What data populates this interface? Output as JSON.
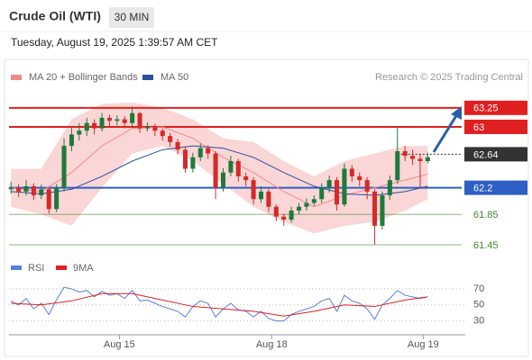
{
  "header": {
    "title": "Crude Oil (WTI)",
    "interval": "30 MIN",
    "timestamp": "Tuesday, August 19, 2025 1:39:57 AM CET"
  },
  "source": "Research © 2025 Trading Central",
  "chart_data": [
    {
      "type": "candlestick",
      "open": [
        62.18,
        62.2,
        62.15,
        62.22,
        62.1,
        62.18,
        61.92,
        62.2,
        62.75,
        62.9,
        62.95,
        63.05,
        62.98,
        63.12,
        63.08,
        63.1,
        63.05,
        63.18,
        62.98,
        63.0,
        62.95,
        62.88,
        62.8,
        62.7,
        62.45,
        62.6,
        62.72,
        62.65,
        62.2,
        62.4,
        62.55,
        62.35,
        62.3,
        62.05,
        62.15,
        61.95,
        61.82,
        61.78,
        61.9,
        61.95,
        62.0,
        62.05,
        62.2,
        62.3,
        61.98,
        62.45,
        62.35,
        62.3,
        62.15,
        61.7,
        62.1,
        62.3,
        62.68,
        62.62,
        62.58,
        62.55
      ],
      "high": [
        62.28,
        62.25,
        62.3,
        62.26,
        62.24,
        62.2,
        62.25,
        62.85,
        63.0,
        63.05,
        63.12,
        63.1,
        63.18,
        63.16,
        63.15,
        63.14,
        63.27,
        63.2,
        63.06,
        63.04,
        62.98,
        62.92,
        62.84,
        62.74,
        62.66,
        62.78,
        62.76,
        62.68,
        62.46,
        62.62,
        62.58,
        62.4,
        62.34,
        62.22,
        62.18,
        61.98,
        61.86,
        61.95,
        62.0,
        62.06,
        62.1,
        62.26,
        62.36,
        62.34,
        62.52,
        62.5,
        62.4,
        62.34,
        62.18,
        62.15,
        62.36,
        63.0,
        62.75,
        62.7,
        62.65,
        62.66
      ],
      "low": [
        62.12,
        62.08,
        62.1,
        62.04,
        62.05,
        61.86,
        61.88,
        62.15,
        62.68,
        62.82,
        62.88,
        62.9,
        62.94,
        63.0,
        63.02,
        62.98,
        63.0,
        62.92,
        62.94,
        62.88,
        62.82,
        62.74,
        62.64,
        62.4,
        62.4,
        62.55,
        62.58,
        62.05,
        62.15,
        62.35,
        62.28,
        62.22,
        61.98,
        62.0,
        61.88,
        61.76,
        61.7,
        61.74,
        61.85,
        61.9,
        61.96,
        62.0,
        62.14,
        61.9,
        61.95,
        62.28,
        62.22,
        62.05,
        61.45,
        61.65,
        62.04,
        62.25,
        62.55,
        62.5,
        62.2,
        62.52
      ],
      "close": [
        62.2,
        62.15,
        62.22,
        62.1,
        62.18,
        61.92,
        62.2,
        62.75,
        62.9,
        62.95,
        63.05,
        62.98,
        63.12,
        63.08,
        63.1,
        63.05,
        63.18,
        62.98,
        63.0,
        62.95,
        62.88,
        62.8,
        62.7,
        62.45,
        62.6,
        62.72,
        62.65,
        62.2,
        62.4,
        62.55,
        62.35,
        62.3,
        62.05,
        62.15,
        61.95,
        61.82,
        61.78,
        61.9,
        61.95,
        62.0,
        62.05,
        62.2,
        62.3,
        61.98,
        62.45,
        62.35,
        62.3,
        62.15,
        61.7,
        62.1,
        62.3,
        62.68,
        62.62,
        62.58,
        62.55,
        62.6
      ],
      "up_color": "#1e7a3c",
      "down_color": "#d42a2a",
      "series": [
        {
          "name": "MA 20 + Bollinger Bands",
          "color": "#f08a8a",
          "band_color": "#fbd6d6",
          "x": [
            0,
            4,
            8,
            12,
            16,
            20,
            24,
            28,
            32,
            36,
            40,
            44,
            48,
            52,
            55
          ],
          "values": [
            62.2,
            62.15,
            62.4,
            62.75,
            62.98,
            63.0,
            62.85,
            62.6,
            62.4,
            62.15,
            61.95,
            62.1,
            62.2,
            62.3,
            62.38
          ],
          "upper": [
            62.45,
            62.45,
            63.1,
            63.3,
            63.32,
            63.25,
            63.1,
            62.85,
            62.8,
            62.55,
            62.35,
            62.55,
            62.65,
            62.75,
            62.75
          ],
          "lower": [
            61.95,
            61.85,
            61.7,
            62.2,
            62.65,
            62.75,
            62.55,
            62.25,
            61.95,
            61.75,
            61.6,
            61.7,
            61.75,
            61.9,
            62.05
          ]
        },
        {
          "name": "MA 50",
          "color": "#2b4f9e",
          "x": [
            0,
            4,
            8,
            12,
            16,
            20,
            24,
            28,
            32,
            36,
            40,
            44,
            48,
            52,
            55
          ],
          "values": [
            62.15,
            62.12,
            62.18,
            62.35,
            62.55,
            62.7,
            62.75,
            62.72,
            62.6,
            62.4,
            62.22,
            62.12,
            62.1,
            62.15,
            62.22
          ]
        }
      ],
      "levels": [
        {
          "value": 63.25,
          "color": "#e02020",
          "style": "box",
          "line": "solid"
        },
        {
          "value": 63.0,
          "color": "#e02020",
          "style": "box",
          "line": "solid"
        },
        {
          "value": 62.64,
          "color": "#333333",
          "style": "box",
          "line": "dotted"
        },
        {
          "value": 62.2,
          "color": "#2d5fc4",
          "style": "box",
          "line": "solid"
        },
        {
          "value": 61.85,
          "color": "#3d8a2a",
          "style": "text",
          "line": "solid"
        },
        {
          "value": 61.45,
          "color": "#3d8a2a",
          "style": "text",
          "line": "solid"
        }
      ],
      "ylim": [
        61.32,
        63.39
      ],
      "xlim": [
        -0.5,
        59
      ],
      "xticks": [
        {
          "value": 14.3,
          "label": "Aug 15"
        },
        {
          "value": 34.4,
          "label": "Aug 18"
        },
        {
          "value": 54.4,
          "label": "Aug 19"
        }
      ]
    },
    {
      "type": "line",
      "series": [
        {
          "name": "RSI",
          "color": "#5b7fdc",
          "values": [
            55,
            50,
            58,
            45,
            52,
            38,
            56,
            72,
            70,
            66,
            68,
            60,
            67,
            62,
            64,
            58,
            68,
            55,
            56,
            52,
            48,
            45,
            42,
            35,
            48,
            55,
            52,
            35,
            45,
            52,
            44,
            42,
            35,
            42,
            33,
            30,
            30,
            38,
            42,
            45,
            48,
            55,
            58,
            42,
            62,
            55,
            52,
            45,
            32,
            50,
            58,
            68,
            62,
            60,
            58,
            60
          ]
        },
        {
          "name": "9MA",
          "color": "#e02020",
          "x": [
            0,
            4,
            8,
            12,
            16,
            20,
            24,
            28,
            32,
            36,
            40,
            44,
            48,
            52,
            55
          ],
          "values": [
            52,
            50,
            55,
            64,
            64,
            56,
            48,
            45,
            42,
            36,
            42,
            50,
            48,
            56,
            60
          ]
        }
      ],
      "ylim": [
        15,
        80
      ],
      "yticks": [
        30,
        50,
        70
      ],
      "xlim": [
        -0.5,
        59
      ],
      "grid": true
    }
  ]
}
